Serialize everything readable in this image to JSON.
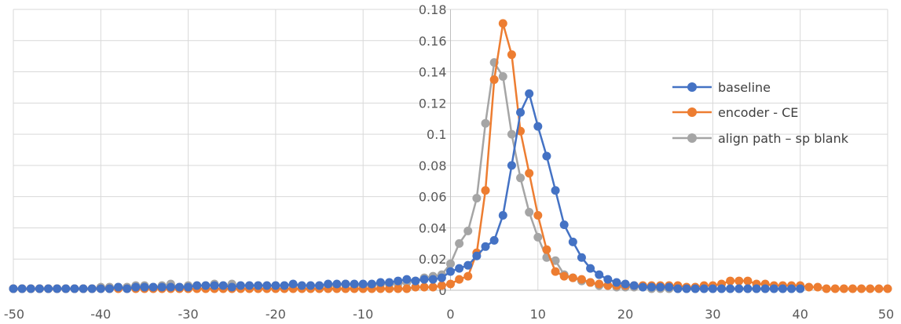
{
  "chart_data": {
    "type": "scatter",
    "title": "",
    "xlabel": "",
    "ylabel": "",
    "xlim": [
      -50,
      50
    ],
    "ylim": [
      0,
      0.18
    ],
    "x_ticks": [
      -50,
      -40,
      -30,
      -20,
      -10,
      0,
      10,
      20,
      30,
      40,
      50
    ],
    "x_tick_labels": [
      "-50",
      "-40",
      "-30",
      "-20",
      "-10",
      "0",
      "10",
      "20",
      "30",
      "40",
      "50"
    ],
    "y_ticks": [
      0,
      0.02,
      0.04,
      0.06,
      0.08,
      0.1,
      0.12,
      0.14,
      0.16,
      0.18
    ],
    "y_tick_labels": [
      "0",
      "0.02",
      "0.04",
      "0.06",
      "0.08",
      "0.1",
      "0.12",
      "0.14",
      "0.16",
      "0.18"
    ],
    "grid": true,
    "legend_position": "right",
    "series": [
      {
        "name": "baseline",
        "color": "#4472C4",
        "x": [
          -50,
          -49,
          -48,
          -47,
          -46,
          -45,
          -44,
          -43,
          -42,
          -41,
          -40,
          -39,
          -38,
          -37,
          -36,
          -35,
          -34,
          -33,
          -32,
          -31,
          -30,
          -29,
          -28,
          -27,
          -26,
          -25,
          -24,
          -23,
          -22,
          -21,
          -20,
          -19,
          -18,
          -17,
          -16,
          -15,
          -14,
          -13,
          -12,
          -11,
          -10,
          -9,
          -8,
          -7,
          -6,
          -5,
          -4,
          -3,
          -2,
          -1,
          0,
          1,
          2,
          3,
          4,
          5,
          6,
          7,
          8,
          9,
          10,
          11,
          12,
          13,
          14,
          15,
          16,
          17,
          18,
          19,
          20,
          21,
          22,
          23,
          24,
          25,
          26,
          27,
          28,
          29,
          30,
          31,
          32,
          33,
          34,
          35,
          36,
          37,
          38,
          39,
          40
        ],
        "y": [
          0.001,
          0.001,
          0.001,
          0.001,
          0.001,
          0.001,
          0.001,
          0.001,
          0.001,
          0.001,
          0.001,
          0.001,
          0.002,
          0.001,
          0.002,
          0.002,
          0.002,
          0.002,
          0.002,
          0.002,
          0.002,
          0.003,
          0.003,
          0.003,
          0.003,
          0.002,
          0.003,
          0.003,
          0.003,
          0.003,
          0.003,
          0.003,
          0.004,
          0.003,
          0.003,
          0.003,
          0.004,
          0.004,
          0.004,
          0.004,
          0.004,
          0.004,
          0.005,
          0.005,
          0.006,
          0.007,
          0.006,
          0.007,
          0.007,
          0.008,
          0.012,
          0.014,
          0.016,
          0.022,
          0.028,
          0.032,
          0.048,
          0.08,
          0.114,
          0.126,
          0.105,
          0.086,
          0.064,
          0.042,
          0.031,
          0.021,
          0.014,
          0.01,
          0.007,
          0.005,
          0.004,
          0.003,
          0.002,
          0.002,
          0.002,
          0.002,
          0.001,
          0.001,
          0.001,
          0.001,
          0.001,
          0.001,
          0.001,
          0.001,
          0.001,
          0.001,
          0.001,
          0.001,
          0.001,
          0.001,
          0.001
        ]
      },
      {
        "name": "encoder - CE",
        "color": "#ED7D31",
        "x": [
          -50,
          -49,
          -48,
          -47,
          -46,
          -45,
          -44,
          -43,
          -42,
          -41,
          -40,
          -39,
          -38,
          -37,
          -36,
          -35,
          -34,
          -33,
          -32,
          -31,
          -30,
          -29,
          -28,
          -27,
          -26,
          -25,
          -24,
          -23,
          -22,
          -21,
          -20,
          -19,
          -18,
          -17,
          -16,
          -15,
          -14,
          -13,
          -12,
          -11,
          -10,
          -9,
          -8,
          -7,
          -6,
          -5,
          -4,
          -3,
          -2,
          -1,
          0,
          1,
          2,
          3,
          4,
          5,
          6,
          7,
          8,
          9,
          10,
          11,
          12,
          13,
          14,
          15,
          16,
          17,
          18,
          19,
          20,
          21,
          22,
          23,
          24,
          25,
          26,
          27,
          28,
          29,
          30,
          31,
          32,
          33,
          34,
          35,
          36,
          37,
          38,
          39,
          40,
          41,
          42,
          43,
          44,
          45,
          46,
          47,
          48,
          49,
          50
        ],
        "y": [
          0.001,
          0.001,
          0.001,
          0.001,
          0.001,
          0.001,
          0.001,
          0.001,
          0.001,
          0.001,
          0.001,
          0.001,
          0.001,
          0.001,
          0.001,
          0.001,
          0.001,
          0.001,
          0.001,
          0.001,
          0.001,
          0.001,
          0.001,
          0.001,
          0.001,
          0.001,
          0.001,
          0.001,
          0.001,
          0.001,
          0.001,
          0.001,
          0.001,
          0.001,
          0.001,
          0.001,
          0.001,
          0.001,
          0.001,
          0.001,
          0.001,
          0.001,
          0.001,
          0.001,
          0.001,
          0.001,
          0.002,
          0.002,
          0.002,
          0.003,
          0.004,
          0.007,
          0.009,
          0.024,
          0.064,
          0.135,
          0.171,
          0.151,
          0.102,
          0.075,
          0.048,
          0.026,
          0.012,
          0.009,
          0.008,
          0.007,
          0.005,
          0.004,
          0.003,
          0.003,
          0.003,
          0.003,
          0.003,
          0.003,
          0.003,
          0.003,
          0.003,
          0.002,
          0.002,
          0.003,
          0.003,
          0.004,
          0.006,
          0.006,
          0.006,
          0.004,
          0.004,
          0.003,
          0.003,
          0.003,
          0.003,
          0.002,
          0.002,
          0.001,
          0.001,
          0.001,
          0.001,
          0.001,
          0.001,
          0.001,
          0.001
        ]
      },
      {
        "name": "align path – sp blank",
        "color": "#A5A5A5",
        "x": [
          -50,
          -49,
          -48,
          -47,
          -46,
          -45,
          -44,
          -43,
          -42,
          -41,
          -40,
          -39,
          -38,
          -37,
          -36,
          -35,
          -34,
          -33,
          -32,
          -31,
          -30,
          -29,
          -28,
          -27,
          -26,
          -25,
          -24,
          -23,
          -22,
          -21,
          -20,
          -19,
          -18,
          -17,
          -16,
          -15,
          -14,
          -13,
          -12,
          -11,
          -10,
          -9,
          -8,
          -7,
          -6,
          -5,
          -4,
          -3,
          -2,
          -1,
          0,
          1,
          2,
          3,
          4,
          5,
          6,
          7,
          8,
          9,
          10,
          11,
          12,
          13,
          14,
          15,
          16,
          17,
          18,
          19,
          20,
          21,
          22,
          23,
          24,
          25,
          26,
          27,
          28,
          29,
          30,
          31,
          32,
          33,
          34,
          35,
          36,
          37,
          38,
          39,
          40
        ],
        "y": [
          0.001,
          0.001,
          0.001,
          0.001,
          0.001,
          0.001,
          0.001,
          0.001,
          0.001,
          0.001,
          0.002,
          0.002,
          0.002,
          0.002,
          0.003,
          0.003,
          0.002,
          0.003,
          0.004,
          0.002,
          0.003,
          0.003,
          0.003,
          0.004,
          0.003,
          0.004,
          0.003,
          0.003,
          0.003,
          0.003,
          0.003,
          0.003,
          0.003,
          0.003,
          0.003,
          0.003,
          0.003,
          0.003,
          0.004,
          0.003,
          0.003,
          0.003,
          0.004,
          0.004,
          0.004,
          0.005,
          0.006,
          0.008,
          0.009,
          0.01,
          0.017,
          0.03,
          0.038,
          0.059,
          0.107,
          0.146,
          0.137,
          0.1,
          0.072,
          0.05,
          0.034,
          0.021,
          0.019,
          0.01,
          0.008,
          0.006,
          0.005,
          0.003,
          0.003,
          0.002,
          0.002,
          0.002,
          0.002,
          0.001,
          0.001,
          0.001,
          0.001,
          0.001,
          0.001,
          0.001,
          0.001,
          0.001,
          0.001,
          0.001,
          0.001,
          0.001,
          0.001,
          0.001,
          0.001,
          0.001,
          0.001
        ]
      }
    ]
  }
}
